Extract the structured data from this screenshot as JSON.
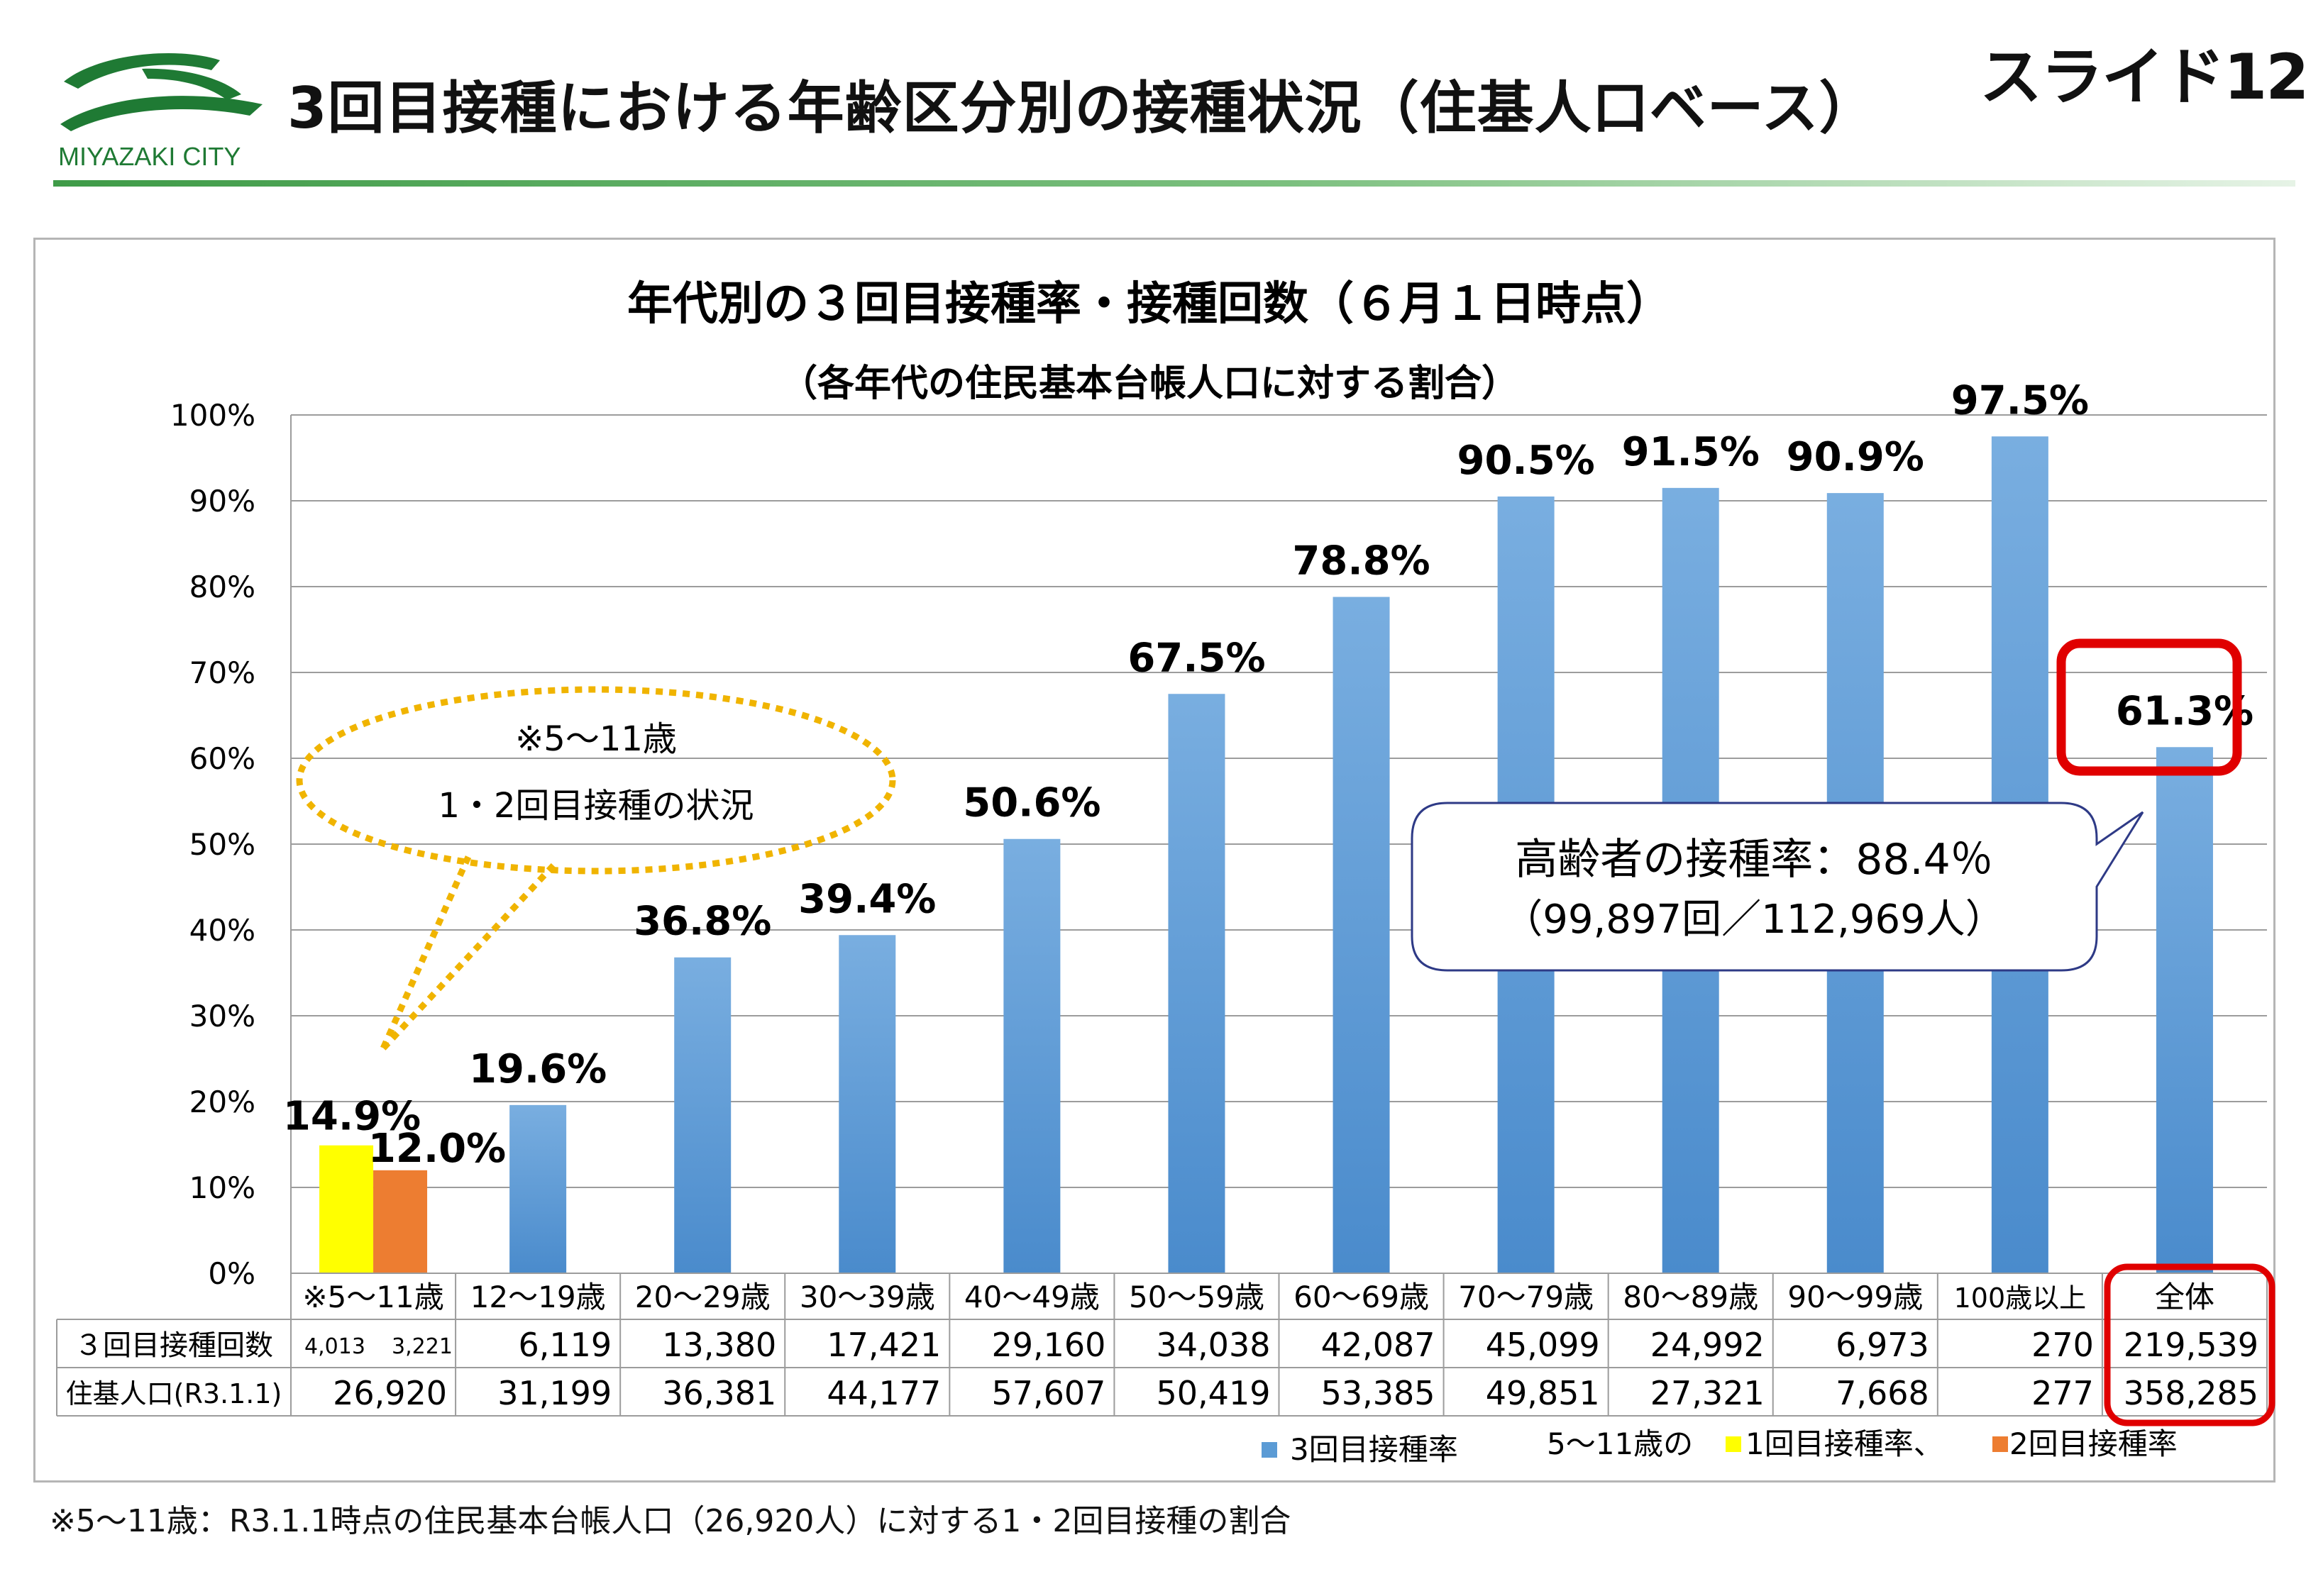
{
  "header": {
    "logo_text": "MIYAZAKI CITY",
    "title": "3回目接種における年齢区分別の接種状況（住基人口ベース）",
    "slide_label": "スライド12"
  },
  "colors": {
    "bar": "#5b9bd5",
    "yellow": "#ffff00",
    "orange": "#ed7d31",
    "highlight": "#e00000",
    "callout_dash": "#f0b400",
    "callout_border": "#2e3a86"
  },
  "chart_data": {
    "type": "bar",
    "title": "年代別の３回目接種率・接種回数（６月１日時点）",
    "subtitle": "（各年代の住民基本台帳人口に対する割合）",
    "ylim": [
      0,
      100
    ],
    "yticks": [
      "0%",
      "10%",
      "20%",
      "30%",
      "40%",
      "50%",
      "60%",
      "70%",
      "80%",
      "90%",
      "100%"
    ],
    "categories": [
      "※5～11歳",
      "12～19歳",
      "20～29歳",
      "30～39歳",
      "40～49歳",
      "50～59歳",
      "60～69歳",
      "70～79歳",
      "80～89歳",
      "90～99歳",
      "100歳以上",
      "全体"
    ],
    "series": [
      {
        "name": "3回目接種率",
        "values": [
          null,
          19.6,
          36.8,
          39.4,
          50.6,
          67.5,
          78.8,
          90.5,
          91.5,
          90.9,
          97.5,
          61.3
        ]
      },
      {
        "name": "1回目接種率",
        "values": [
          14.9,
          null,
          null,
          null,
          null,
          null,
          null,
          null,
          null,
          null,
          null,
          null
        ]
      },
      {
        "name": "2回目接種率",
        "values": [
          12.0,
          null,
          null,
          null,
          null,
          null,
          null,
          null,
          null,
          null,
          null,
          null
        ]
      }
    ],
    "data_labels": [
      "19.6%",
      "36.8%",
      "39.4%",
      "50.6%",
      "67.5%",
      "78.8%",
      "90.5%",
      "91.5%",
      "90.9%",
      "97.5%",
      "61.3%"
    ],
    "kids_labels": [
      "14.9%",
      "12.0%"
    ],
    "table": {
      "row1_label": "３回目接種回数",
      "row1_kids": [
        "4,013",
        "3,221"
      ],
      "row1": [
        "6,119",
        "13,380",
        "17,421",
        "29,160",
        "34,038",
        "42,087",
        "45,099",
        "24,992",
        "6,973",
        "270",
        "219,539"
      ],
      "row2_label": "住基人口(R3.1.1)",
      "row2": [
        "26,920",
        "31,199",
        "36,381",
        "44,177",
        "57,607",
        "50,419",
        "53,385",
        "49,851",
        "27,321",
        "7,668",
        "277",
        "358,285"
      ]
    },
    "legend": {
      "series1": "3回目接種率",
      "prefix": "5～11歳の",
      "series2": "1回目接種率、",
      "series3": "2回目接種率",
      "placement": "bottom-right"
    },
    "callout_kids": {
      "line1": "※5～11歳",
      "line2": "1・2回目接種の状況"
    },
    "callout_elderly": {
      "line1": "高齢者の接種率：88.4％",
      "line2": "（99,897回／112,969人）"
    }
  },
  "footnote": "※5～11歳：R3.1.1時点の住民基本台帳人口（26,920人）に対する1・2回目接種の割合"
}
